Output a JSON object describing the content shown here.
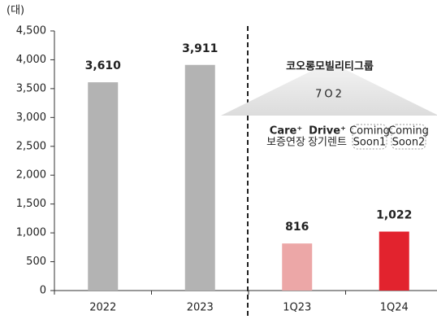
{
  "chart_data": {
    "type": "bar",
    "y_unit": "(대)",
    "categories": [
      "2022",
      "2023",
      "1Q23",
      "1Q24"
    ],
    "values": [
      3610,
      3911,
      816,
      1022
    ],
    "value_labels": [
      "3,610",
      "3,911",
      "816",
      "1,022"
    ],
    "colors": [
      "#b3b3b3",
      "#b3b3b3",
      "#eca7a7",
      "#e2232e"
    ],
    "ylim": [
      0,
      4500
    ],
    "yticks": [
      0,
      500,
      {
        "value": 1000,
        "label": "1,000"
      },
      {
        "value": 1500,
        "label": "1,500"
      },
      {
        "value": 2000,
        "label": "2,000"
      },
      {
        "value": 2500,
        "label": "2,500"
      },
      {
        "value": 3000,
        "label": "3,000"
      },
      {
        "value": 3500,
        "label": "3,500"
      },
      {
        "value": 4000,
        "label": "4,000"
      },
      {
        "value": 4500,
        "label": "4,500"
      }
    ],
    "grid": false,
    "inset": {
      "brand": "코오롱모빌리티그룹",
      "logo": "7O2",
      "items": [
        {
          "name": "Care⁺",
          "sub": "보증연장"
        },
        {
          "name": "Drive⁺",
          "sub": "장기렌트"
        },
        {
          "name": "Coming",
          "sub": "Soon1"
        },
        {
          "name": "Coming",
          "sub": "Soon2"
        }
      ]
    }
  }
}
